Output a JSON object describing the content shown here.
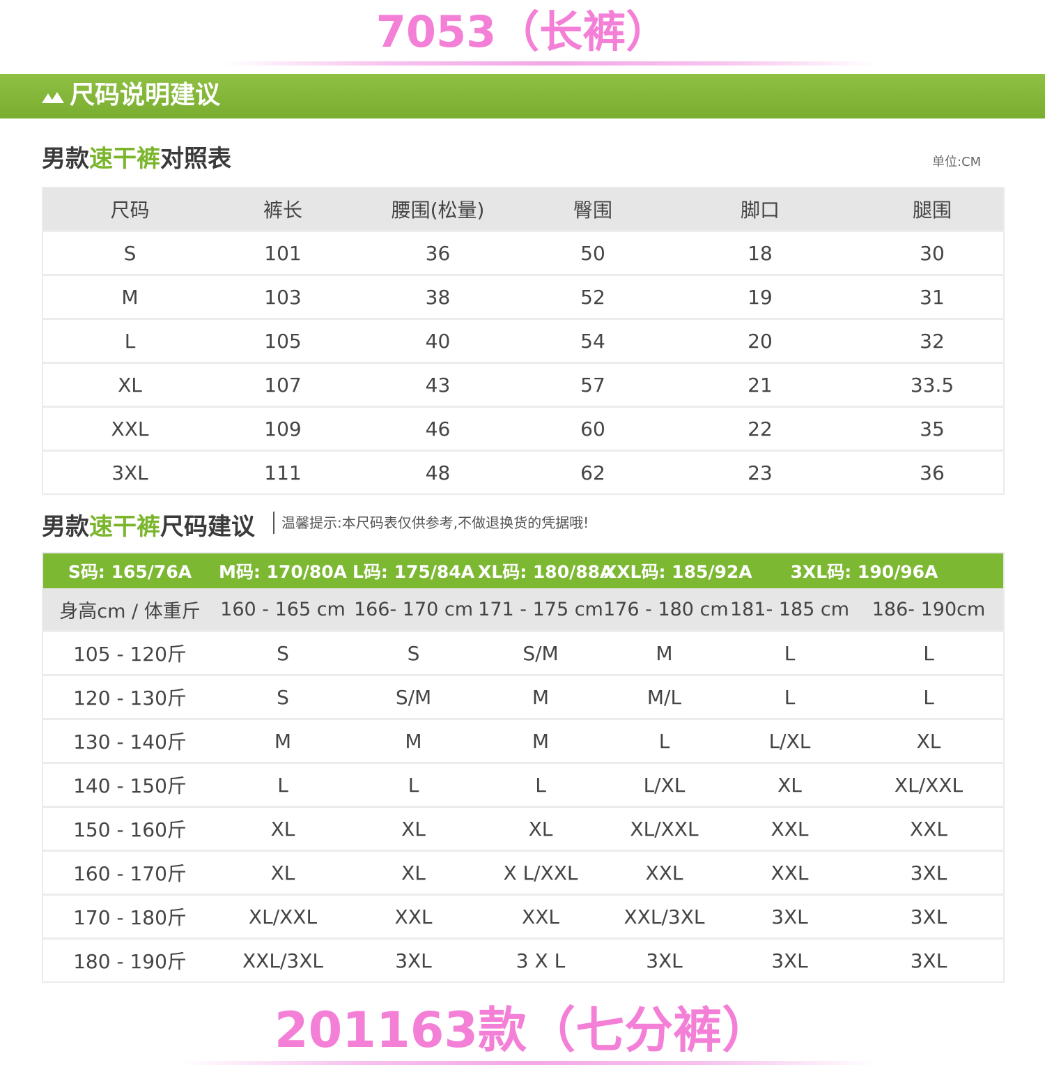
{
  "top_title": "7053（长裤）",
  "banner": {
    "title": "尺码说明建议",
    "icon": "mountain-icon"
  },
  "size_table": {
    "heading_prefix": "男款",
    "heading_accent": "速干裤",
    "heading_suffix": "对照表",
    "unit": "单位:CM",
    "columns": [
      "尺码",
      "裤长",
      "腰围(松量)",
      "臀围",
      "脚口",
      "腿围"
    ],
    "rows": [
      [
        "S",
        "101",
        "36",
        "50",
        "18",
        "30"
      ],
      [
        "M",
        "103",
        "38",
        "52",
        "19",
        "31"
      ],
      [
        "L",
        "105",
        "40",
        "54",
        "20",
        "32"
      ],
      [
        "XL",
        "107",
        "43",
        "57",
        "21",
        "33.5"
      ],
      [
        "XXL",
        "109",
        "46",
        "60",
        "22",
        "35"
      ],
      [
        "3XL",
        "111",
        "48",
        "62",
        "23",
        "36"
      ]
    ]
  },
  "suggestion_table": {
    "heading_prefix": "男款",
    "heading_accent": "速干裤",
    "heading_suffix": "尺码建议",
    "tip": "温馨提示:本尺码表仅供参考,不做退换货的凭据哦!",
    "green_header": [
      "S码: 165/76A",
      "M码: 170/80A",
      "L码: 175/84A",
      "XL码: 180/88A",
      "XXL码: 185/92A",
      "3XL码: 190/96A"
    ],
    "gray_header": [
      "身高cm / 体重斤",
      "160 - 165 cm",
      "166- 170 cm",
      "171 - 175 cm",
      "176 - 180 cm",
      "181- 185 cm",
      "186- 190cm"
    ],
    "rows": [
      [
        "105 - 120斤",
        "S",
        "S",
        "S/M",
        "M",
        "L",
        "L"
      ],
      [
        "120 - 130斤",
        "S",
        "S/M",
        "M",
        "M/L",
        "L",
        "L"
      ],
      [
        "130 - 140斤",
        "M",
        "M",
        "M",
        "L",
        "L/XL",
        "XL"
      ],
      [
        "140 - 150斤",
        "L",
        "L",
        "L",
        "L/XL",
        "XL",
        "XL/XXL"
      ],
      [
        "150 - 160斤",
        "XL",
        "XL",
        "XL",
        "XL/XXL",
        "XXL",
        "XXL"
      ],
      [
        "160 - 170斤",
        "XL",
        "XL",
        "X L/XXL",
        "XXL",
        "XXL",
        "3XL"
      ],
      [
        "170 - 180斤",
        "XL/XXL",
        "XXL",
        "XXL",
        "XXL/3XL",
        "3XL",
        "3XL"
      ],
      [
        "180 - 190斤",
        "XXL/3XL",
        "3XL",
        "3 X L",
        "3XL",
        "3XL",
        "3XL"
      ]
    ]
  },
  "bottom_title": "201163款（七分裤）",
  "colors": {
    "accent_green": "#7db833",
    "title_pink": "#f47fd6",
    "header_gray": "#e6e6e6"
  }
}
